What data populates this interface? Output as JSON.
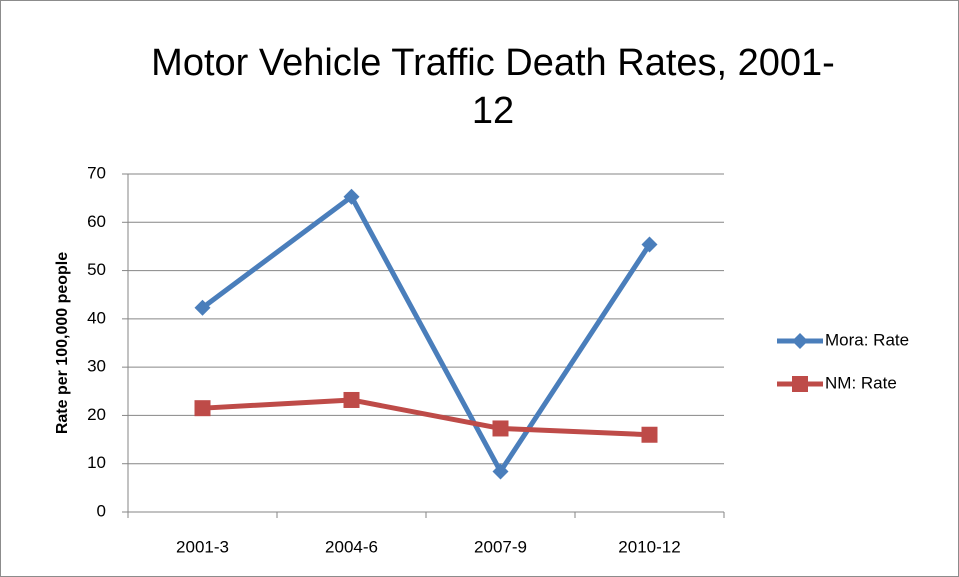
{
  "chart_data": {
    "type": "line",
    "title": "Motor Vehicle Traffic Death Rates, 2001-12",
    "y_label": "Rate per 100,000 people",
    "categories": [
      "2001-3",
      "2004-6",
      "2007-9",
      "2010-12"
    ],
    "series": [
      {
        "name": "Mora: Rate",
        "color": "#4a7ebb",
        "marker": "diamond",
        "values": [
          42.3,
          65.3,
          8.4,
          55.4
        ]
      },
      {
        "name": "NM: Rate",
        "color": "#be4b48",
        "marker": "square",
        "values": [
          21.5,
          23.2,
          17.3,
          16.0
        ]
      }
    ],
    "ylim": [
      0,
      70
    ],
    "yticks": [
      0,
      10,
      20,
      30,
      40,
      50,
      60,
      70
    ],
    "grid": true,
    "legend": "right"
  }
}
